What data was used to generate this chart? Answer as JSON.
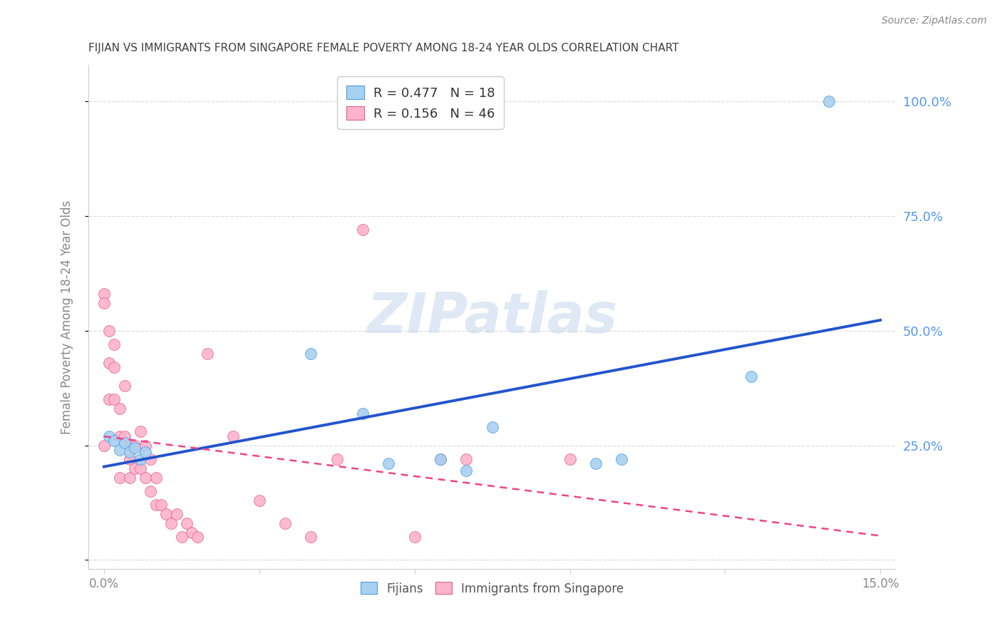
{
  "title": "FIJIAN VS IMMIGRANTS FROM SINGAPORE FEMALE POVERTY AMONG 18-24 YEAR OLDS CORRELATION CHART",
  "source": "Source: ZipAtlas.com",
  "ylabel": "Female Poverty Among 18-24 Year Olds",
  "xlim": [
    0.0,
    0.15
  ],
  "ylim": [
    -0.02,
    1.08
  ],
  "xticks": [
    0.0,
    0.03,
    0.06,
    0.09,
    0.12,
    0.15
  ],
  "xtick_labels": [
    "0.0%",
    "",
    "",
    "",
    "",
    "15.0%"
  ],
  "ytick_positions": [
    0.0,
    0.25,
    0.5,
    0.75,
    1.0
  ],
  "ytick_right_labels": [
    "",
    "25.0%",
    "50.0%",
    "75.0%",
    "100.0%"
  ],
  "fijians_x": [
    0.001,
    0.002,
    0.003,
    0.004,
    0.005,
    0.006,
    0.007,
    0.008,
    0.04,
    0.05,
    0.055,
    0.065,
    0.07,
    0.075,
    0.095,
    0.1,
    0.125,
    0.14
  ],
  "fijians_y": [
    0.27,
    0.26,
    0.24,
    0.255,
    0.235,
    0.245,
    0.22,
    0.235,
    0.45,
    0.32,
    0.21,
    0.22,
    0.195,
    0.29,
    0.21,
    0.22,
    0.4,
    1.0
  ],
  "singapore_x": [
    0.0,
    0.0,
    0.0,
    0.001,
    0.001,
    0.001,
    0.002,
    0.002,
    0.002,
    0.003,
    0.003,
    0.003,
    0.004,
    0.004,
    0.005,
    0.005,
    0.005,
    0.006,
    0.006,
    0.007,
    0.007,
    0.008,
    0.008,
    0.009,
    0.009,
    0.01,
    0.01,
    0.011,
    0.012,
    0.013,
    0.014,
    0.015,
    0.016,
    0.017,
    0.018,
    0.02,
    0.025,
    0.03,
    0.035,
    0.04,
    0.045,
    0.05,
    0.06,
    0.065,
    0.07,
    0.09
  ],
  "singapore_y": [
    0.58,
    0.56,
    0.25,
    0.5,
    0.43,
    0.35,
    0.47,
    0.42,
    0.35,
    0.33,
    0.27,
    0.18,
    0.38,
    0.27,
    0.25,
    0.22,
    0.18,
    0.25,
    0.2,
    0.28,
    0.2,
    0.25,
    0.18,
    0.22,
    0.15,
    0.18,
    0.12,
    0.12,
    0.1,
    0.08,
    0.1,
    0.05,
    0.08,
    0.06,
    0.05,
    0.45,
    0.27,
    0.13,
    0.08,
    0.05,
    0.22,
    0.72,
    0.05,
    0.22,
    0.22,
    0.22
  ],
  "fijian_color": "#a8d0f0",
  "fijian_edge": "#4d9de0",
  "singapore_color": "#ffb3cc",
  "singapore_edge": "#e06090",
  "trend_blue": "#2255cc",
  "trend_pink": "#ee4488",
  "fijian_R": 0.477,
  "fijian_N": 18,
  "singapore_R": 0.156,
  "singapore_N": 46,
  "right_axis_color": "#5599ee",
  "watermark_color": "#c5d8ee",
  "background_color": "#ffffff",
  "grid_color": "#dddddd",
  "title_color": "#404040",
  "axis_color": "#888888",
  "legend_box_color": "#eeeeee",
  "legend_edge_color": "#cccccc"
}
